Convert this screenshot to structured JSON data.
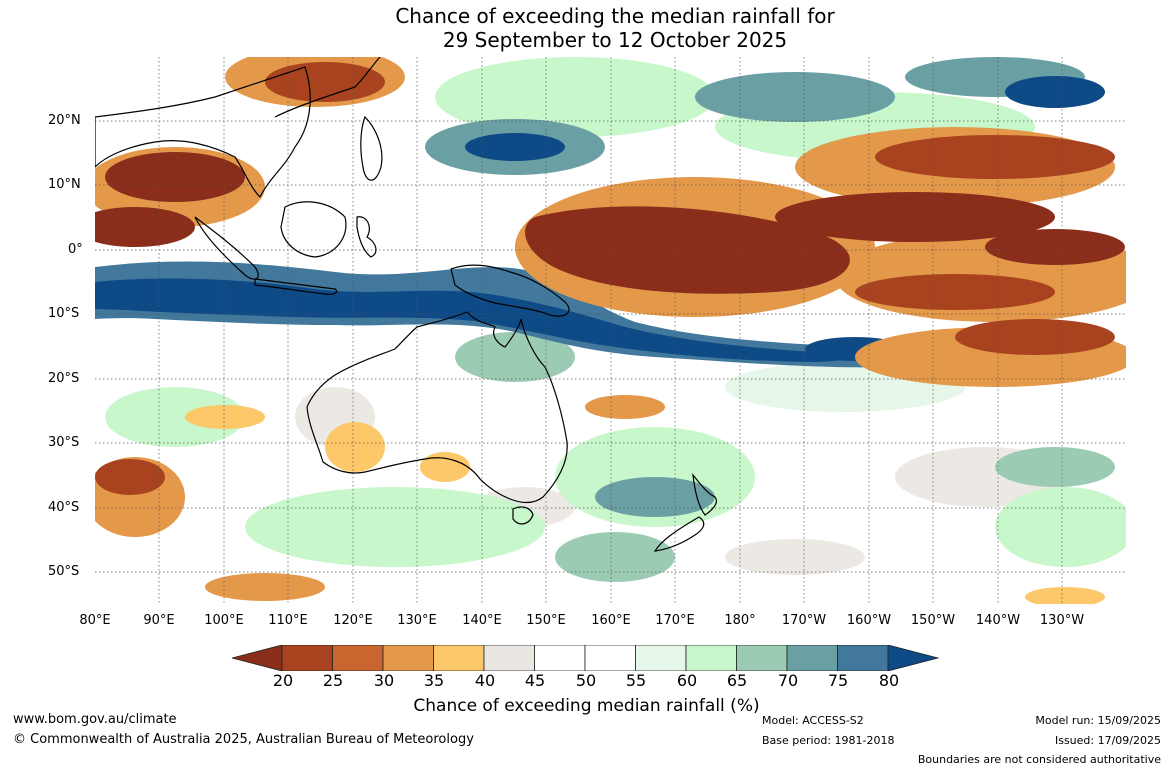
{
  "title": {
    "line1": "Chance of exceeding the median rainfall for",
    "line2": "29 September to 12 October 2025"
  },
  "map": {
    "lat_labels": [
      "20°N",
      "10°N",
      "0°",
      "10°S",
      "20°S",
      "30°S",
      "40°S",
      "50°S"
    ],
    "lon_labels": [
      "80°E",
      "90°E",
      "100°E",
      "110°E",
      "120°E",
      "130°E",
      "140°E",
      "150°E",
      "160°E",
      "170°E",
      "180°",
      "170°W",
      "160°W",
      "150°W",
      "140°W",
      "130°W"
    ]
  },
  "colorbar": {
    "ticks": [
      "20",
      "25",
      "30",
      "35",
      "40",
      "45",
      "50",
      "55",
      "60",
      "65",
      "70",
      "75",
      "80"
    ],
    "colors": [
      "#8a2d1a",
      "#a9431f",
      "#c9652e",
      "#e3984a",
      "#fcc86a",
      "#eae7e2",
      "#ffffff",
      "#ffffff",
      "#e6f6e8",
      "#c8f7cc",
      "#9ccbb4",
      "#6aa0a3",
      "#41789c",
      "#0e4a86"
    ],
    "label": "Chance of exceeding median rainfall (%)"
  },
  "footer": {
    "website": "www.bom.gov.au/climate",
    "copyright": "© Commonwealth of Australia 2025, Australian Bureau of Meteorology",
    "model": "Model: ACCESS-S2",
    "base_period": "Base period: 1981-2018",
    "model_run": "Model run: 15/09/2025",
    "issued": "Issued: 17/09/2025",
    "disclaimer": "Boundaries are not considered authoritative"
  }
}
